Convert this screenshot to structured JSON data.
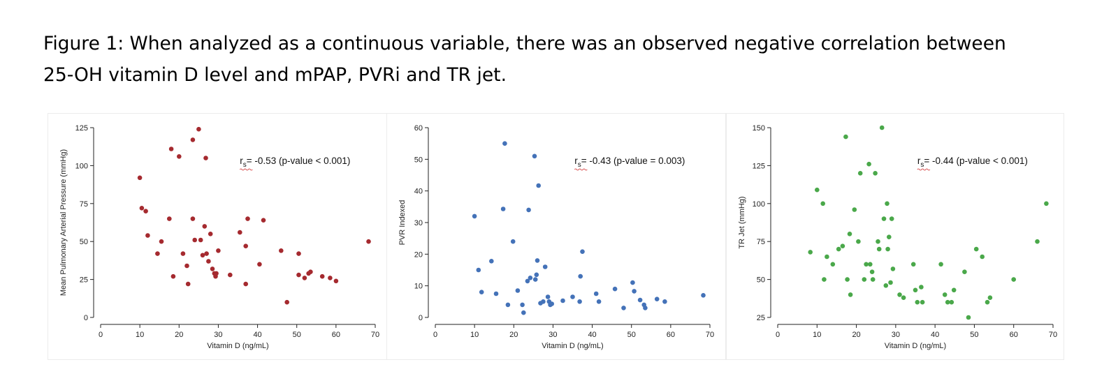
{
  "caption": {
    "line1": "Figure 1: When analyzed as a continuous variable, there was an observed negative correlation between",
    "line2": "25-OH vitamin D level and mPAP, PVRi and TR jet."
  },
  "chart_data": [
    {
      "type": "scatter",
      "color": "#a52a2f",
      "xlabel": "Vitamin D (ng/mL)",
      "ylabel": "Mean Pulmonary Arterial Pressure (mmHg)",
      "xlim": [
        0,
        70
      ],
      "ylim": [
        0,
        125
      ],
      "xticks": [
        0,
        10,
        20,
        30,
        40,
        50,
        60,
        70
      ],
      "yticks": [
        0,
        25,
        50,
        75,
        100,
        125
      ],
      "annotation": {
        "r": "r",
        "sub": "s",
        "text": "= -0.53 (p-value < 0.001)"
      },
      "points": [
        [
          10,
          92
        ],
        [
          10.5,
          72
        ],
        [
          11.5,
          70
        ],
        [
          12,
          54
        ],
        [
          14.5,
          42
        ],
        [
          15.5,
          50
        ],
        [
          17.5,
          65
        ],
        [
          18,
          111
        ],
        [
          18.5,
          27
        ],
        [
          20,
          106
        ],
        [
          21,
          42
        ],
        [
          22,
          34
        ],
        [
          22.3,
          22
        ],
        [
          23.5,
          65
        ],
        [
          23.5,
          117
        ],
        [
          24,
          51
        ],
        [
          25,
          124
        ],
        [
          25.5,
          51
        ],
        [
          26,
          41
        ],
        [
          26.5,
          60
        ],
        [
          26.8,
          105
        ],
        [
          27,
          42
        ],
        [
          27.5,
          37
        ],
        [
          28,
          55
        ],
        [
          28.5,
          32
        ],
        [
          29,
          29
        ],
        [
          29.3,
          27
        ],
        [
          29.5,
          29
        ],
        [
          30,
          44
        ],
        [
          33,
          28
        ],
        [
          35.5,
          56
        ],
        [
          37,
          47
        ],
        [
          37,
          22
        ],
        [
          37.5,
          65
        ],
        [
          40.5,
          35
        ],
        [
          41.5,
          64
        ],
        [
          46,
          44
        ],
        [
          47.5,
          10
        ],
        [
          50.5,
          42
        ],
        [
          50.5,
          28
        ],
        [
          52,
          26
        ],
        [
          53,
          29
        ],
        [
          53.5,
          30
        ],
        [
          56.5,
          27
        ],
        [
          58.5,
          26
        ],
        [
          60,
          24
        ],
        [
          68.3,
          50
        ]
      ]
    },
    {
      "type": "scatter",
      "color": "#4472b8",
      "xlabel": "Vitamin D (ng/mL)",
      "ylabel": "PVR Indexed",
      "xlim": [
        0,
        70
      ],
      "ylim": [
        0,
        60
      ],
      "xticks": [
        0,
        10,
        20,
        30,
        40,
        50,
        60,
        70
      ],
      "yticks": [
        0,
        10,
        20,
        30,
        40,
        50,
        60
      ],
      "annotation": {
        "r": "r",
        "sub": "s",
        "text": "= -0.43 (p-value = 0.003)"
      },
      "points": [
        [
          10,
          32
        ],
        [
          11,
          15
        ],
        [
          11.8,
          8
        ],
        [
          14.3,
          17.8
        ],
        [
          15.5,
          7.5
        ],
        [
          17.3,
          34.3
        ],
        [
          17.7,
          55
        ],
        [
          18.5,
          4
        ],
        [
          19.8,
          24
        ],
        [
          21,
          8.5
        ],
        [
          22.2,
          4
        ],
        [
          22.5,
          1.5
        ],
        [
          23.5,
          11.5
        ],
        [
          23.8,
          34
        ],
        [
          24.2,
          12.5
        ],
        [
          25.3,
          51
        ],
        [
          25.5,
          12
        ],
        [
          25.8,
          13.5
        ],
        [
          26,
          18
        ],
        [
          26.3,
          41.7
        ],
        [
          26.8,
          4.5
        ],
        [
          27.5,
          5
        ],
        [
          28,
          16
        ],
        [
          28.7,
          6.5
        ],
        [
          29,
          5
        ],
        [
          29.3,
          4
        ],
        [
          29.7,
          4.3
        ],
        [
          32.5,
          5.3
        ],
        [
          35,
          6.5
        ],
        [
          36.8,
          5
        ],
        [
          37,
          13
        ],
        [
          37.5,
          20.8
        ],
        [
          41,
          7.5
        ],
        [
          41.7,
          5
        ],
        [
          45.8,
          9
        ],
        [
          48,
          3
        ],
        [
          50.3,
          11
        ],
        [
          50.7,
          8.3
        ],
        [
          52.2,
          5.5
        ],
        [
          53.2,
          4
        ],
        [
          53.5,
          3
        ],
        [
          56.5,
          5.8
        ],
        [
          58.5,
          5
        ],
        [
          68.3,
          7
        ]
      ]
    },
    {
      "type": "scatter",
      "color": "#4aa84a",
      "xlabel": "Vitamin D (ng/mL)",
      "ylabel": "TR Jet (mmHg)",
      "xlim": [
        0,
        70
      ],
      "ylim": [
        25,
        150
      ],
      "xticks": [
        0,
        10,
        20,
        30,
        40,
        50,
        60,
        70
      ],
      "yticks": [
        25,
        50,
        75,
        100,
        125,
        150
      ],
      "annotation": {
        "r": "r",
        "sub": "s",
        "text": "= -0.44 (p-value < 0.001)"
      },
      "points": [
        [
          8.3,
          68
        ],
        [
          10,
          109
        ],
        [
          11.5,
          100
        ],
        [
          11.8,
          50
        ],
        [
          12.5,
          65
        ],
        [
          14,
          60
        ],
        [
          15.5,
          70
        ],
        [
          16.5,
          72
        ],
        [
          17.3,
          144
        ],
        [
          17.7,
          50
        ],
        [
          18.3,
          80
        ],
        [
          18.5,
          40
        ],
        [
          19.5,
          96
        ],
        [
          20.5,
          75
        ],
        [
          21,
          120
        ],
        [
          22,
          50
        ],
        [
          22.5,
          60
        ],
        [
          23.2,
          126
        ],
        [
          23.5,
          60
        ],
        [
          24,
          55
        ],
        [
          24.2,
          50
        ],
        [
          24.8,
          120
        ],
        [
          25.5,
          75
        ],
        [
          25.8,
          70
        ],
        [
          26.5,
          150
        ],
        [
          27,
          90
        ],
        [
          27.5,
          46
        ],
        [
          27.8,
          100
        ],
        [
          28,
          70
        ],
        [
          28.3,
          78
        ],
        [
          28.7,
          48
        ],
        [
          29,
          90
        ],
        [
          29.3,
          57
        ],
        [
          31,
          40
        ],
        [
          32,
          38
        ],
        [
          34.5,
          60
        ],
        [
          35,
          43
        ],
        [
          35.5,
          35
        ],
        [
          36.5,
          45
        ],
        [
          36.8,
          35
        ],
        [
          41.5,
          60
        ],
        [
          42.5,
          40
        ],
        [
          43.2,
          35
        ],
        [
          44.2,
          35
        ],
        [
          44.8,
          43
        ],
        [
          47.5,
          55
        ],
        [
          48.5,
          25
        ],
        [
          50.5,
          70
        ],
        [
          52,
          65
        ],
        [
          53.3,
          35
        ],
        [
          54,
          38
        ],
        [
          60,
          50
        ],
        [
          66,
          75
        ],
        [
          68.3,
          100
        ]
      ]
    }
  ]
}
